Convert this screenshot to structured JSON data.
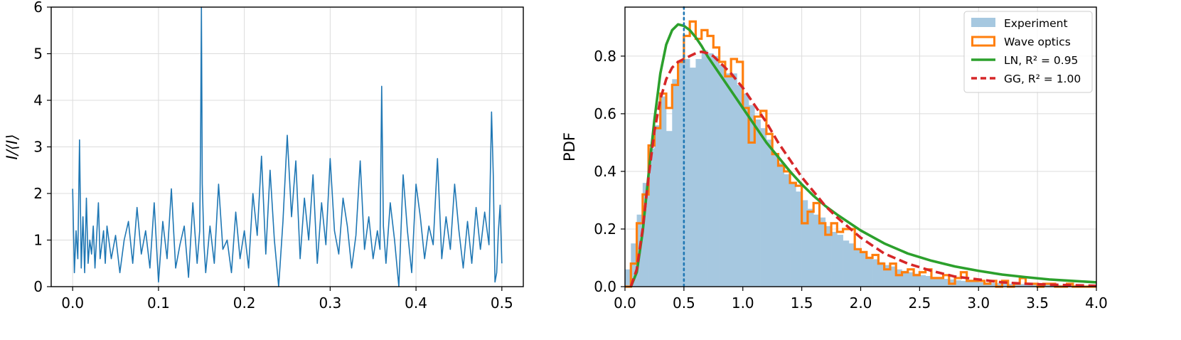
{
  "chart_data": [
    {
      "type": "line",
      "ylabel": "I/⟨I⟩",
      "xlabel": "",
      "xlim": [
        -0.025,
        0.525
      ],
      "ylim": [
        0,
        6
      ],
      "xticks": [
        "0.0",
        "0.1",
        "0.2",
        "0.3",
        "0.4",
        "0.5"
      ],
      "yticks": [
        "0",
        "1",
        "2",
        "3",
        "4",
        "5",
        "6"
      ],
      "grid": true,
      "line_color": "#1f77b4",
      "series": [
        {
          "x": [
            0.0,
            0.002,
            0.004,
            0.006,
            0.008,
            0.01,
            0.012,
            0.014,
            0.016,
            0.018,
            0.02,
            0.022,
            0.024,
            0.026,
            0.028,
            0.03,
            0.032,
            0.034,
            0.036,
            0.038,
            0.04,
            0.045,
            0.05,
            0.055,
            0.06,
            0.065,
            0.07,
            0.075,
            0.08,
            0.085,
            0.09,
            0.095,
            0.1,
            0.105,
            0.11,
            0.115,
            0.12,
            0.125,
            0.13,
            0.135,
            0.14,
            0.145,
            0.148,
            0.149,
            0.15,
            0.151,
            0.153,
            0.155,
            0.16,
            0.165,
            0.17,
            0.175,
            0.18,
            0.185,
            0.19,
            0.195,
            0.2,
            0.205,
            0.21,
            0.215,
            0.22,
            0.225,
            0.23,
            0.235,
            0.24,
            0.245,
            0.25,
            0.255,
            0.26,
            0.265,
            0.27,
            0.275,
            0.28,
            0.285,
            0.29,
            0.295,
            0.3,
            0.305,
            0.31,
            0.315,
            0.32,
            0.325,
            0.33,
            0.335,
            0.34,
            0.345,
            0.35,
            0.355,
            0.358,
            0.36,
            0.362,
            0.365,
            0.37,
            0.375,
            0.38,
            0.385,
            0.39,
            0.395,
            0.4,
            0.405,
            0.41,
            0.415,
            0.42,
            0.425,
            0.43,
            0.435,
            0.44,
            0.445,
            0.45,
            0.455,
            0.46,
            0.465,
            0.47,
            0.475,
            0.48,
            0.485,
            0.488,
            0.49,
            0.492,
            0.494,
            0.496,
            0.498,
            0.5
          ],
          "y": [
            2.1,
            0.3,
            1.2,
            0.6,
            3.15,
            0.4,
            1.5,
            0.3,
            1.9,
            0.5,
            1.0,
            0.7,
            1.3,
            0.4,
            1.1,
            1.8,
            0.6,
            0.9,
            1.2,
            0.5,
            1.3,
            0.6,
            1.1,
            0.3,
            1.0,
            1.4,
            0.5,
            1.7,
            0.7,
            1.2,
            0.4,
            1.8,
            0.1,
            1.4,
            0.6,
            2.1,
            0.4,
            0.9,
            1.3,
            0.2,
            1.8,
            0.5,
            1.2,
            3.0,
            6.0,
            2.2,
            0.9,
            0.3,
            1.3,
            0.5,
            2.2,
            0.8,
            1.0,
            0.3,
            1.6,
            0.6,
            1.2,
            0.4,
            2.0,
            1.1,
            2.8,
            0.7,
            2.5,
            1.0,
            0.0,
            1.4,
            3.25,
            1.5,
            2.7,
            0.6,
            1.9,
            1.0,
            2.4,
            0.5,
            1.8,
            0.9,
            2.75,
            1.2,
            0.7,
            1.9,
            1.3,
            0.4,
            1.1,
            2.7,
            0.8,
            1.5,
            0.6,
            1.2,
            0.8,
            4.3,
            1.3,
            0.5,
            1.8,
            1.0,
            0.0,
            2.4,
            1.2,
            0.3,
            2.2,
            1.5,
            0.6,
            1.3,
            0.9,
            2.75,
            0.6,
            1.5,
            0.8,
            2.2,
            1.2,
            0.4,
            1.4,
            0.5,
            1.7,
            0.8,
            1.6,
            0.9,
            3.75,
            2.4,
            0.1,
            0.3,
            1.2,
            1.75,
            0.5
          ]
        }
      ]
    },
    {
      "type": "bar",
      "ylabel": "PDF",
      "xlabel": "",
      "xlim": [
        0.0,
        4.0
      ],
      "ylim": [
        0,
        0.97
      ],
      "xticks": [
        "0.0",
        "0.5",
        "1.0",
        "1.5",
        "2.0",
        "2.5",
        "3.0",
        "3.5",
        "4.0"
      ],
      "yticks": [
        "0.0",
        "0.2",
        "0.4",
        "0.6",
        "0.8"
      ],
      "grid": true,
      "legend_position": "top-right",
      "vline": {
        "x": 0.5,
        "style": "dotted",
        "color": "#1f77b4"
      },
      "series": [
        {
          "name": "Experiment",
          "kind": "histogram",
          "color": "#a6c8e0",
          "bin_width": 0.05,
          "x": [
            0.025,
            0.075,
            0.125,
            0.175,
            0.225,
            0.275,
            0.325,
            0.375,
            0.425,
            0.475,
            0.525,
            0.575,
            0.625,
            0.675,
            0.725,
            0.775,
            0.825,
            0.875,
            0.925,
            0.975,
            1.025,
            1.075,
            1.125,
            1.175,
            1.225,
            1.275,
            1.325,
            1.375,
            1.425,
            1.475,
            1.525,
            1.575,
            1.625,
            1.675,
            1.725,
            1.775,
            1.825,
            1.875,
            1.925,
            1.975,
            2.025,
            2.075,
            2.125,
            2.175,
            2.225,
            2.275,
            2.325,
            2.375,
            2.425,
            2.475,
            2.525,
            2.575,
            2.625,
            2.675,
            2.725,
            2.775,
            2.825,
            2.875,
            2.925,
            2.975,
            3.025,
            3.075,
            3.125,
            3.175,
            3.225,
            3.275,
            3.325,
            3.375,
            3.425,
            3.475,
            3.525,
            3.575,
            3.625,
            3.675,
            3.725,
            3.775,
            3.825,
            3.875,
            3.925,
            3.975
          ],
          "y": [
            0.06,
            0.15,
            0.25,
            0.36,
            0.48,
            0.56,
            0.66,
            0.54,
            0.72,
            0.78,
            0.79,
            0.76,
            0.79,
            0.82,
            0.81,
            0.8,
            0.77,
            0.74,
            0.74,
            0.7,
            0.67,
            0.63,
            0.58,
            0.55,
            0.51,
            0.46,
            0.43,
            0.39,
            0.36,
            0.33,
            0.3,
            0.27,
            0.25,
            0.24,
            0.21,
            0.19,
            0.18,
            0.16,
            0.15,
            0.13,
            0.12,
            0.1,
            0.095,
            0.085,
            0.075,
            0.07,
            0.06,
            0.055,
            0.05,
            0.045,
            0.04,
            0.037,
            0.033,
            0.03,
            0.027,
            0.025,
            0.022,
            0.02,
            0.018,
            0.017,
            0.015,
            0.014,
            0.013,
            0.012,
            0.011,
            0.01,
            0.009,
            0.009,
            0.008,
            0.008,
            0.007,
            0.007,
            0.006,
            0.006,
            0.005,
            0.005,
            0.005,
            0.004,
            0.004,
            0.004
          ]
        },
        {
          "name": "Wave optics",
          "kind": "step",
          "color": "#ff7f0e",
          "bin_width": 0.05,
          "x": [
            0.025,
            0.075,
            0.125,
            0.175,
            0.225,
            0.275,
            0.325,
            0.375,
            0.425,
            0.475,
            0.525,
            0.575,
            0.625,
            0.675,
            0.725,
            0.775,
            0.825,
            0.875,
            0.925,
            0.975,
            1.025,
            1.075,
            1.125,
            1.175,
            1.225,
            1.275,
            1.325,
            1.375,
            1.425,
            1.475,
            1.525,
            1.575,
            1.625,
            1.675,
            1.725,
            1.775,
            1.825,
            1.875,
            1.925,
            1.975,
            2.025,
            2.075,
            2.125,
            2.175,
            2.225,
            2.275,
            2.325,
            2.375,
            2.425,
            2.475,
            2.525,
            2.575,
            2.625,
            2.675,
            2.725,
            2.775,
            2.825,
            2.875,
            2.925,
            2.975,
            3.025,
            3.075,
            3.125,
            3.175,
            3.225,
            3.275,
            3.325,
            3.375,
            3.425,
            3.475,
            3.525,
            3.575,
            3.625,
            3.675,
            3.725,
            3.775,
            3.825,
            3.875,
            3.925,
            3.975
          ],
          "y": [
            0.0,
            0.08,
            0.22,
            0.32,
            0.49,
            0.55,
            0.67,
            0.62,
            0.7,
            0.78,
            0.87,
            0.92,
            0.86,
            0.89,
            0.87,
            0.83,
            0.78,
            0.73,
            0.79,
            0.78,
            0.62,
            0.5,
            0.59,
            0.61,
            0.53,
            0.46,
            0.42,
            0.4,
            0.36,
            0.35,
            0.22,
            0.26,
            0.29,
            0.22,
            0.18,
            0.22,
            0.19,
            0.2,
            0.2,
            0.13,
            0.12,
            0.1,
            0.11,
            0.08,
            0.06,
            0.08,
            0.04,
            0.05,
            0.06,
            0.04,
            0.05,
            0.06,
            0.03,
            0.03,
            0.04,
            0.01,
            0.03,
            0.05,
            0.02,
            0.02,
            0.02,
            0.01,
            0.02,
            0.0,
            0.02,
            0.0,
            0.01,
            0.03,
            0.01,
            0.01,
            0.0,
            0.01,
            0.01,
            0.0,
            0.0,
            0.01,
            0.0,
            0.0,
            0.0,
            0.0
          ]
        },
        {
          "name": "LN, R² = 0.95",
          "kind": "line",
          "color": "#2ca02c",
          "x": [
            0.05,
            0.1,
            0.15,
            0.2,
            0.25,
            0.3,
            0.35,
            0.4,
            0.45,
            0.5,
            0.55,
            0.6,
            0.65,
            0.7,
            0.8,
            0.9,
            1.0,
            1.1,
            1.2,
            1.3,
            1.4,
            1.5,
            1.6,
            1.7,
            1.8,
            2.0,
            2.2,
            2.4,
            2.6,
            2.8,
            3.0,
            3.2,
            3.4,
            3.6,
            3.8,
            4.0
          ],
          "y": [
            0.0,
            0.05,
            0.19,
            0.39,
            0.58,
            0.74,
            0.84,
            0.89,
            0.91,
            0.905,
            0.89,
            0.865,
            0.835,
            0.8,
            0.74,
            0.68,
            0.62,
            0.56,
            0.5,
            0.45,
            0.4,
            0.355,
            0.315,
            0.28,
            0.25,
            0.195,
            0.15,
            0.115,
            0.09,
            0.07,
            0.055,
            0.042,
            0.033,
            0.025,
            0.02,
            0.015
          ]
        },
        {
          "name": "GG, R² = 1.00",
          "kind": "line",
          "style": "dashed",
          "color": "#d62728",
          "x": [
            0.05,
            0.1,
            0.15,
            0.2,
            0.25,
            0.3,
            0.35,
            0.4,
            0.45,
            0.5,
            0.55,
            0.6,
            0.65,
            0.7,
            0.75,
            0.8,
            0.9,
            1.0,
            1.1,
            1.2,
            1.3,
            1.4,
            1.5,
            1.6,
            1.7,
            1.8,
            2.0,
            2.2,
            2.4,
            2.6,
            2.8,
            3.0,
            3.2,
            3.4,
            3.6,
            3.8,
            4.0
          ],
          "y": [
            0.0,
            0.06,
            0.2,
            0.38,
            0.54,
            0.65,
            0.72,
            0.76,
            0.78,
            0.79,
            0.8,
            0.81,
            0.815,
            0.81,
            0.8,
            0.78,
            0.74,
            0.69,
            0.63,
            0.57,
            0.5,
            0.44,
            0.38,
            0.33,
            0.28,
            0.24,
            0.17,
            0.115,
            0.08,
            0.055,
            0.035,
            0.025,
            0.015,
            0.01,
            0.007,
            0.005,
            0.003
          ]
        }
      ]
    }
  ]
}
